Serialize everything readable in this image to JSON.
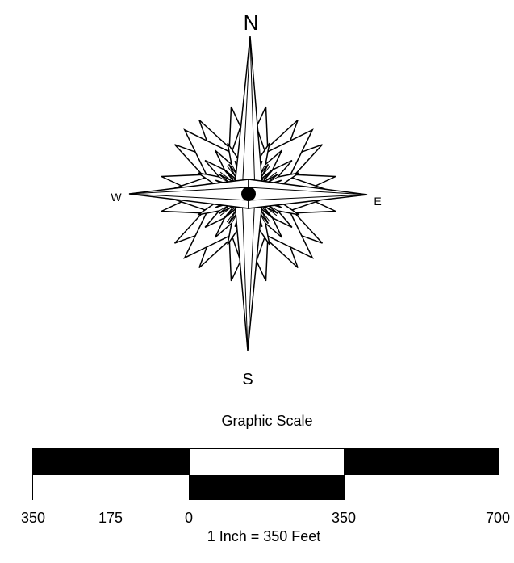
{
  "compass": {
    "north": "N",
    "south": "S",
    "east": "E",
    "west": "W"
  },
  "scale": {
    "title": "Graphic Scale",
    "ticks": [
      "350",
      "175",
      "0",
      "350",
      "700"
    ],
    "caption": "1 Inch = 350 Feet",
    "fill_color": "#000000",
    "bg_color": "#ffffff"
  }
}
